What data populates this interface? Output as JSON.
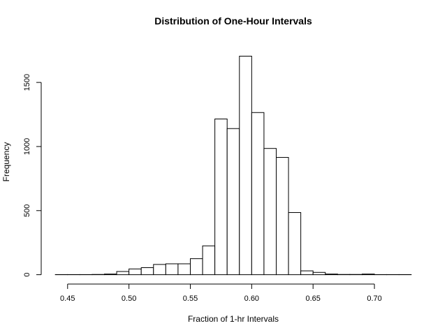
{
  "chart_data": {
    "type": "bar",
    "title": "Distribution of One-Hour Intervals",
    "xlabel": "Fraction of 1-hr Intervals",
    "ylabel": "Frequency",
    "bin_width": 0.01,
    "bin_starts": [
      0.44,
      0.45,
      0.46,
      0.47,
      0.48,
      0.49,
      0.5,
      0.51,
      0.52,
      0.53,
      0.54,
      0.55,
      0.56,
      0.57,
      0.58,
      0.59,
      0.6,
      0.61,
      0.62,
      0.63,
      0.64,
      0.65,
      0.66,
      0.67,
      0.68,
      0.69,
      0.7,
      0.71,
      0.72
    ],
    "values": [
      1,
      1,
      1,
      2,
      5,
      25,
      45,
      55,
      80,
      85,
      85,
      125,
      225,
      1215,
      1140,
      1705,
      1265,
      985,
      915,
      485,
      30,
      18,
      5,
      2,
      2,
      5,
      1,
      1,
      1
    ],
    "xlim": [
      0.44,
      0.73
    ],
    "ylim": [
      0,
      1750
    ],
    "x_ticks": [
      0.45,
      0.5,
      0.55,
      0.6,
      0.65,
      0.7
    ],
    "x_tick_labels": [
      "0.45",
      "0.50",
      "0.55",
      "0.60",
      "0.65",
      "0.70"
    ],
    "y_ticks": [
      0,
      500,
      1000,
      1500
    ],
    "y_tick_labels": [
      "0",
      "500",
      "1000",
      "1500"
    ],
    "grid": false,
    "legend": "none"
  }
}
